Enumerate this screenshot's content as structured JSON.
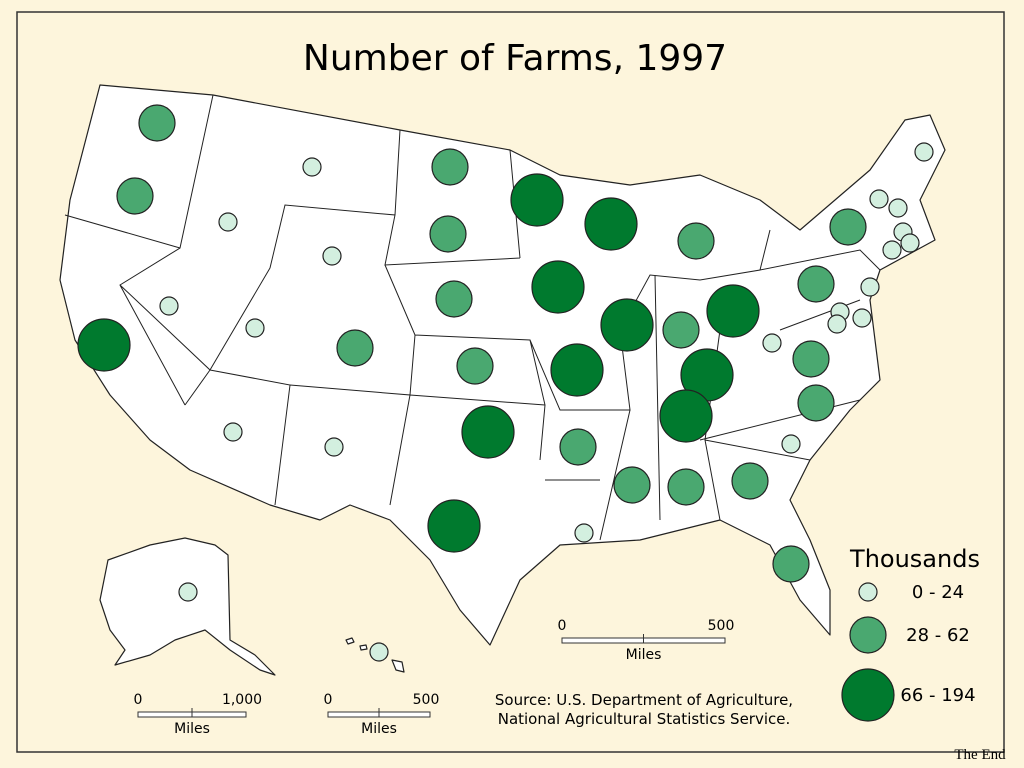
{
  "title": "Number of Farms, 1997",
  "legend": {
    "title": "Thousands",
    "classes": [
      "0 - 24",
      "28 - 62",
      "66 - 194"
    ]
  },
  "scale_bars": [
    {
      "start": "0",
      "end": "1,000",
      "unit": "Miles"
    },
    {
      "start": "0",
      "end": "500",
      "unit": "Miles"
    },
    {
      "start": "0",
      "end": "500",
      "unit": "Miles"
    }
  ],
  "source": [
    "Source: U.S. Department of Agriculture,",
    "National Agricultural Statistics Service."
  ],
  "footer": "The End"
}
